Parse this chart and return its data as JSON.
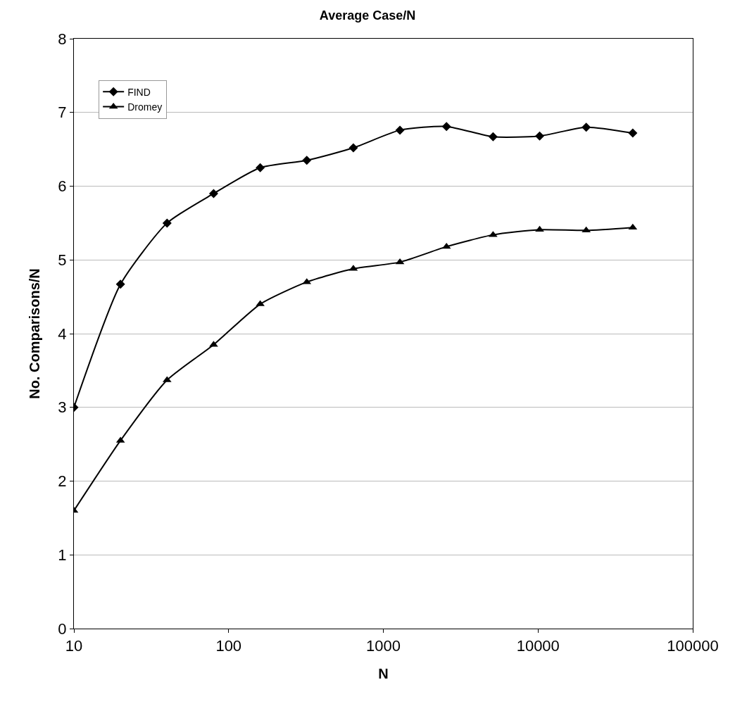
{
  "chart_data": {
    "type": "line",
    "title": "Average Case/N",
    "xlabel": "N",
    "ylabel": "No. Comparisons/N",
    "log": "x",
    "x": [
      10,
      20,
      40,
      80,
      160,
      320,
      640,
      1280,
      2560,
      5120,
      10240,
      20480,
      40960
    ],
    "series": [
      {
        "name": "FIND",
        "color": "#000000",
        "marker": "diamond",
        "values": [
          3.0,
          4.67,
          5.5,
          5.9,
          6.25,
          6.35,
          6.52,
          6.76,
          6.81,
          6.67,
          6.68,
          6.8,
          6.72
        ]
      },
      {
        "name": "Dromey",
        "color": "#000000",
        "marker": "triangle",
        "values": [
          1.6,
          2.55,
          3.37,
          3.85,
          4.4,
          4.7,
          4.88,
          4.97,
          5.18,
          5.34,
          5.41,
          5.4,
          5.44
        ]
      }
    ],
    "xlim": [
      10,
      100000
    ],
    "xticks": [
      10,
      100,
      1000,
      10000,
      100000
    ],
    "ylim": [
      0,
      8
    ],
    "yticks": [
      0,
      1,
      2,
      3,
      4,
      5,
      6,
      7,
      8
    ],
    "grid": "y",
    "legend": "top left",
    "line_style": "solid"
  }
}
